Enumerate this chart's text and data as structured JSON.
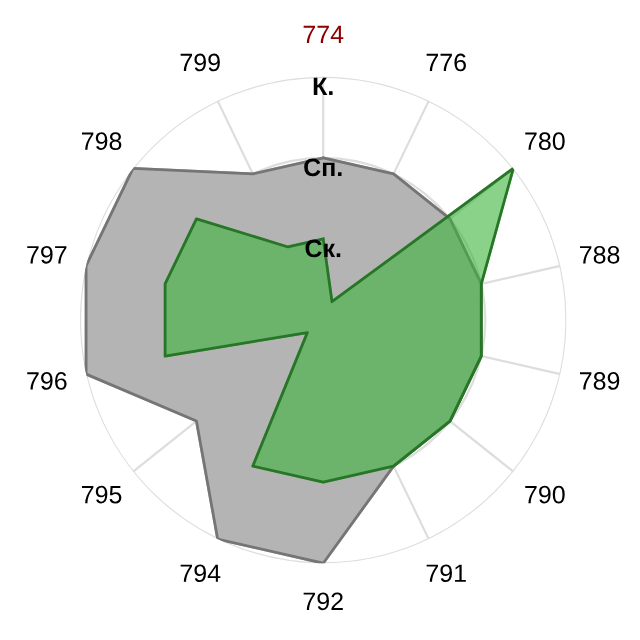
{
  "chart_data": {
    "type": "radar",
    "categories": [
      "774",
      "776",
      "780",
      "788",
      "789",
      "790",
      "791",
      "792",
      "794",
      "795",
      "796",
      "797",
      "798",
      "799"
    ],
    "series": [
      {
        "color": "#b4b4b4",
        "values": [
          2,
          2,
          2,
          2,
          2,
          2,
          2,
          3,
          3,
          2,
          3,
          3,
          3,
          2
        ]
      },
      {
        "color": "#3cb43c",
        "values": [
          1,
          0.25,
          3,
          2,
          2,
          2,
          2,
          2,
          2,
          0.25,
          2,
          2,
          2,
          1
        ]
      }
    ],
    "ylim": [
      0,
      3
    ],
    "yticks": [
      {
        "value": 1,
        "label": "Ск."
      },
      {
        "value": 2,
        "label": "Сп."
      },
      {
        "value": 3,
        "label": "К."
      }
    ],
    "grid": true,
    "legend": false
  }
}
